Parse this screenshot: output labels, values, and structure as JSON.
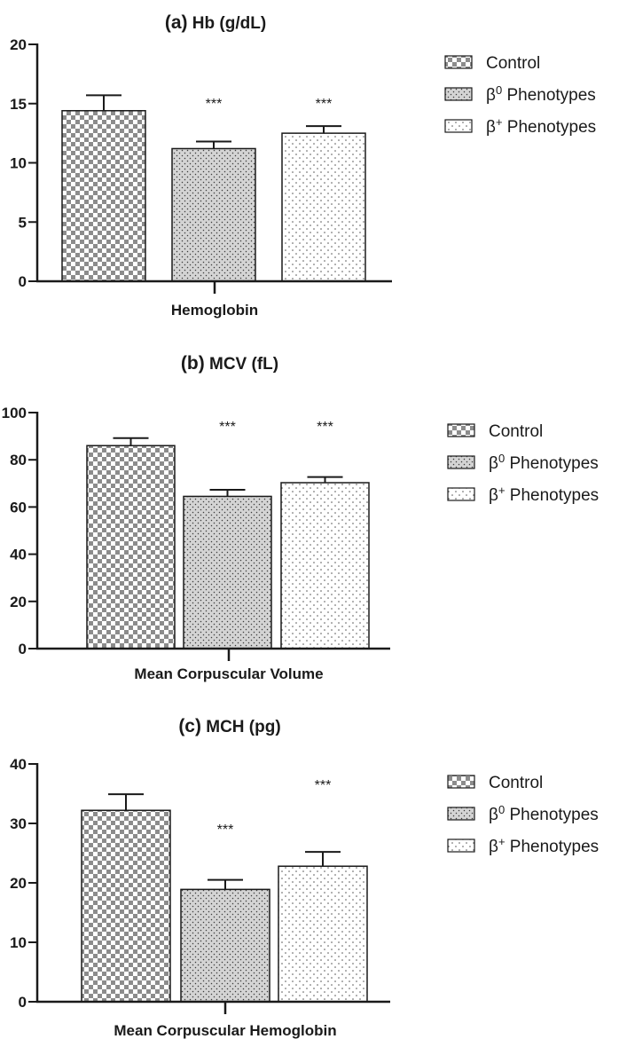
{
  "chart_data": [
    {
      "type": "bar",
      "title": "Hb (g/dL)",
      "panel_label": "(a)",
      "xlabel": "Hemoglobin",
      "ylabel": "",
      "ylim": [
        0,
        20
      ],
      "yticks": [
        0,
        5,
        10,
        15,
        20
      ],
      "categories": [
        "Control",
        "β0 Phenotypes",
        "β+ Phenotypes"
      ],
      "values": [
        14.4,
        11.2,
        12.5
      ],
      "errors": [
        1.3,
        0.6,
        0.6
      ],
      "significance": [
        "",
        "***",
        "***"
      ],
      "legend": [
        {
          "label": "Control",
          "base": "Control",
          "sup": "",
          "pattern": "checker"
        },
        {
          "label": "β0 Phenotypes",
          "base": "β",
          "sup": "0",
          "rest": " Phenotypes",
          "pattern": "densedots"
        },
        {
          "label": "β+ Phenotypes",
          "base": "β",
          "sup": "+",
          "rest": " Phenotypes",
          "pattern": "sparsedots"
        }
      ],
      "legend_position": "right"
    },
    {
      "type": "bar",
      "title": "MCV (fL)",
      "panel_label": "(b)",
      "xlabel": "Mean Corpuscular Volume",
      "ylabel": "",
      "ylim": [
        0,
        100
      ],
      "yticks": [
        0,
        20,
        40,
        60,
        80,
        100
      ],
      "categories": [
        "Control",
        "β0 Phenotypes",
        "β+ Phenotypes"
      ],
      "values": [
        86,
        64.5,
        70.3
      ],
      "errors": [
        3.2,
        2.8,
        2.4
      ],
      "significance": [
        "",
        "***",
        "***"
      ],
      "legend": [
        {
          "label": "Control",
          "base": "Control",
          "sup": "",
          "pattern": "checker"
        },
        {
          "label": "β0 Phenotypes",
          "base": "β",
          "sup": "0",
          "rest": " Phenotypes",
          "pattern": "densedots"
        },
        {
          "label": "β+ Phenotypes",
          "base": "β",
          "sup": "+",
          "rest": " Phenotypes",
          "pattern": "sparsedots"
        }
      ],
      "legend_position": "right"
    },
    {
      "type": "bar",
      "title": "MCH (pg)",
      "panel_label": "(c)",
      "xlabel": "Mean Corpuscular Hemoglobin",
      "ylabel": "",
      "ylim": [
        0,
        40
      ],
      "yticks": [
        0,
        10,
        20,
        30,
        40
      ],
      "categories": [
        "Control",
        "β0 Phenotypes",
        "β+ Phenotypes"
      ],
      "values": [
        32.2,
        18.9,
        22.8
      ],
      "errors": [
        2.7,
        1.6,
        2.4
      ],
      "significance": [
        "",
        "***",
        "***"
      ],
      "legend": [
        {
          "label": "Control",
          "base": "Control",
          "sup": "",
          "pattern": "checker"
        },
        {
          "label": "β0 Phenotypes",
          "base": "β",
          "sup": "0",
          "rest": " Phenotypes",
          "pattern": "densedots"
        },
        {
          "label": "β+ Phenotypes",
          "base": "β",
          "sup": "+",
          "rest": " Phenotypes",
          "pattern": "sparsedots"
        }
      ],
      "legend_position": "right"
    }
  ],
  "colors": {
    "ink": "#1a1a1a",
    "checker_dark": "#8c8c8c",
    "checker_light": "#ffffff",
    "densedots_bg": "#d4d4d4",
    "densedots_dot": "#3c3c3c",
    "sparsedots_bg": "#ffffff",
    "sparsedots_dot": "#4a4a4a"
  }
}
